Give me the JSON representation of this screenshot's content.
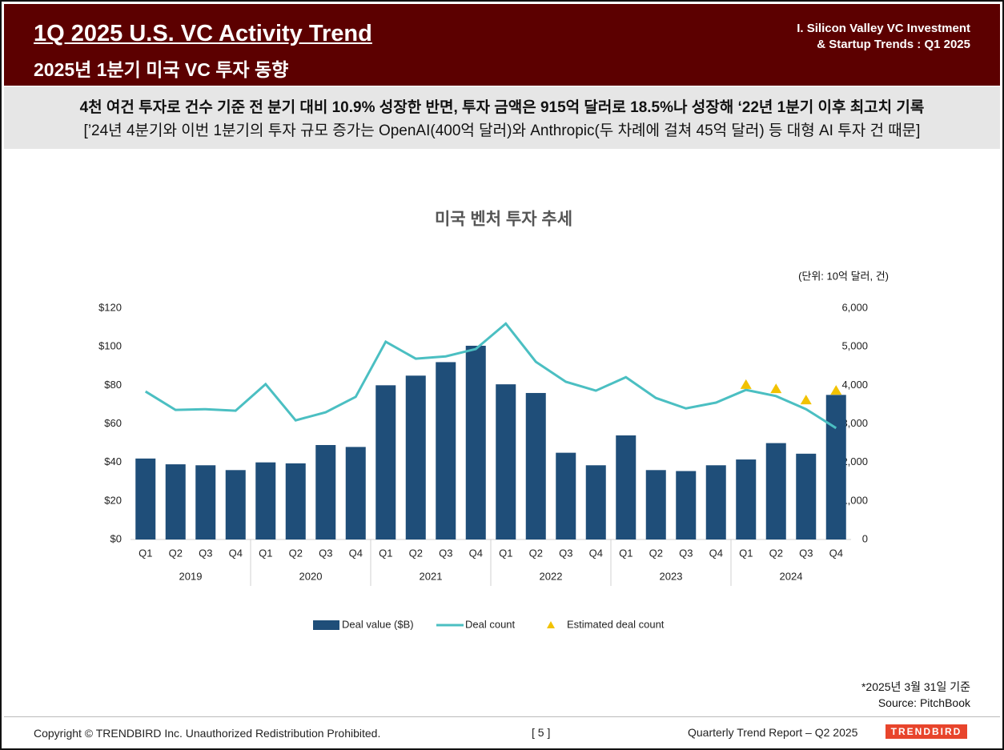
{
  "header": {
    "title": "1Q 2025 U.S. VC Activity Trend",
    "subtitle": "2025년 1분기 미국 VC 투자 동향",
    "section": [
      "I. Silicon Valley VC Investment",
      "& Startup Trends : Q1 2025"
    ]
  },
  "summary": [
    "4천 여건 투자로 건수 기준 전 분기 대비 10.9% 성장한 반면, 투자 금액은 915억 달러로 18.5%나 성장해 ‘22년 1분기 이후 최고치 기록",
    "[’24년 4분기와 이번 1분기의 투자 규모 증가는 OpenAI(400억 달러)와 Anthropic(두 차례에 걸쳐 45억 달러) 등 대형 AI 투자 건 때문]"
  ],
  "chart_data": {
    "type": "bar",
    "title": "미국 벤처 투자 추세",
    "unit_label": "(단위: 10억 달러, 건)",
    "categories": [
      "Q1",
      "Q2",
      "Q3",
      "Q4",
      "Q1",
      "Q2",
      "Q3",
      "Q4",
      "Q1",
      "Q2",
      "Q3",
      "Q4",
      "Q1",
      "Q2",
      "Q3",
      "Q4",
      "Q1",
      "Q2",
      "Q3",
      "Q4",
      "Q1",
      "Q2",
      "Q3",
      "Q4"
    ],
    "years": [
      "2019",
      "2020",
      "2021",
      "2022",
      "2023",
      "2024"
    ],
    "series": [
      {
        "name": "Deal value ($B)",
        "type": "bar",
        "color": "#1f4e79",
        "values": [
          42,
          39,
          38.5,
          36,
          40,
          39.5,
          49,
          48,
          80,
          85,
          92,
          100.5,
          80.5,
          76,
          45,
          38.5,
          54,
          36,
          35.5,
          38.5,
          41.5,
          50,
          44.5,
          75
        ]
      },
      {
        "name": "Deal count",
        "type": "line",
        "axis": "y2",
        "color": "#4bbfc2",
        "values": [
          3840,
          3360,
          3380,
          3340,
          4030,
          3090,
          3300,
          3700,
          5130,
          4690,
          4750,
          4940,
          5600,
          4610,
          4090,
          3860,
          4210,
          3670,
          3400,
          3550,
          3880,
          3720,
          3380,
          2890
        ]
      },
      {
        "name": "Estimated deal count",
        "type": "scatter",
        "marker": "triangle",
        "axis": "y2",
        "color": "#f2c200",
        "values": [
          null,
          null,
          null,
          null,
          null,
          null,
          null,
          null,
          null,
          null,
          null,
          null,
          null,
          null,
          null,
          null,
          null,
          null,
          null,
          null,
          4010,
          3900,
          3610,
          3860
        ]
      }
    ],
    "ylim": [
      0,
      120
    ],
    "yticks": [
      {
        "value": 0,
        "label": "$0"
      },
      {
        "value": 20,
        "label": "$20"
      },
      {
        "value": 40,
        "label": "$40"
      },
      {
        "value": 60,
        "label": "$60"
      },
      {
        "value": 80,
        "label": "$80"
      },
      {
        "value": 100,
        "label": "$100"
      },
      {
        "value": 120,
        "label": "$120"
      }
    ],
    "y2lim": [
      0,
      6000
    ],
    "y2ticks": [
      0,
      {
        "value": 1000,
        "label": "1,000"
      },
      {
        "value": 2000,
        "label": "2,000"
      },
      {
        "value": 3000,
        "label": "3,000"
      },
      {
        "value": 4000,
        "label": "4,000"
      },
      {
        "value": 5000,
        "label": "5,000"
      },
      {
        "value": 6000,
        "label": "6,000"
      }
    ],
    "grid": false,
    "legend": "bottom"
  },
  "notes": [
    "*2025년 3월 31일 기준",
    "Source: PitchBook"
  ],
  "footer": {
    "copyright": "Copyright © TRENDBIRD Inc. Unauthorized Redistribution Prohibited.",
    "page": "[ 5 ]",
    "report": "Quarterly Trend Report – Q2 2025",
    "logo": "TRENDBIRD"
  }
}
